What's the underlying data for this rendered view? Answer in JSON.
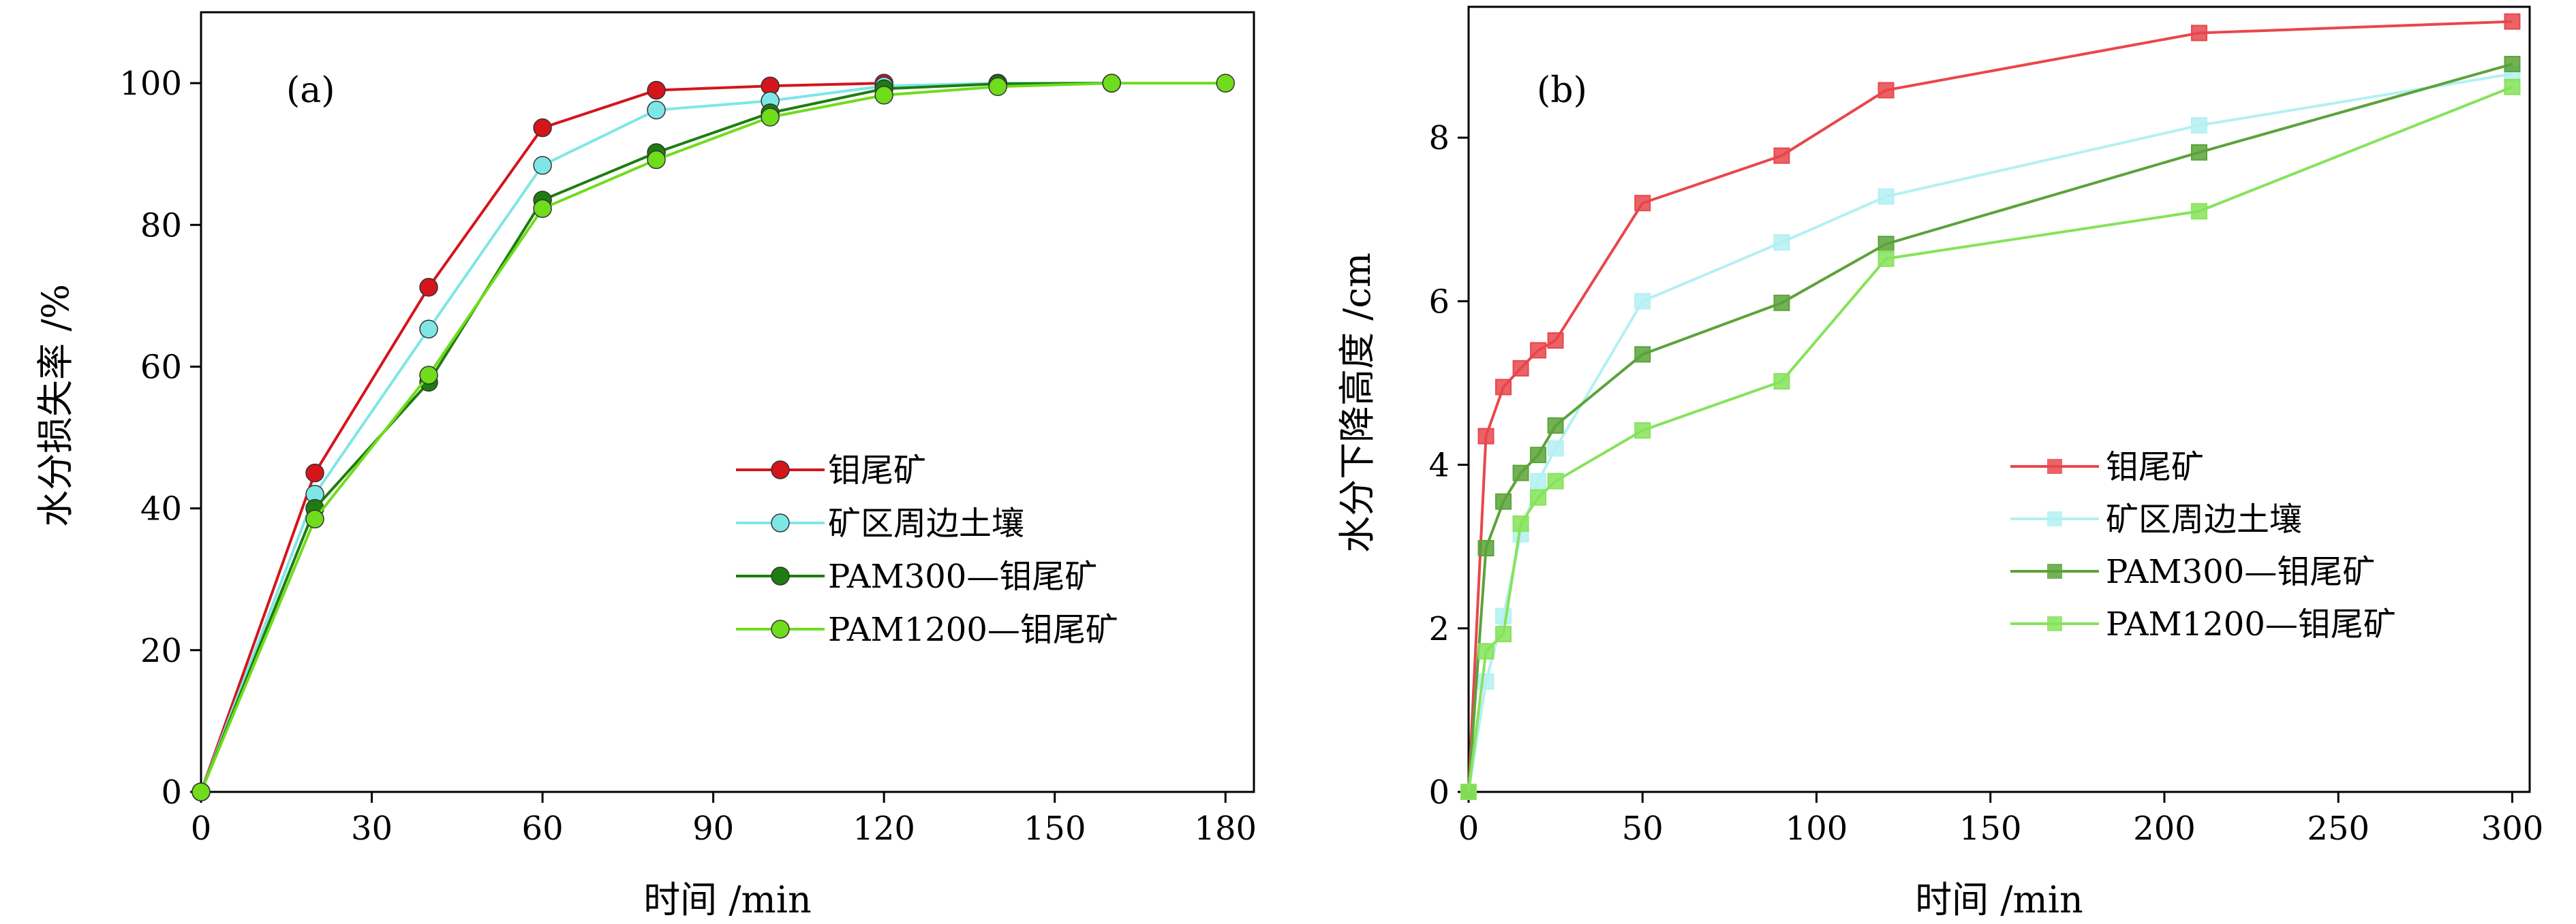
{
  "chart_data": [
    {
      "type": "line",
      "panel_label": "(a)",
      "xlabel": "时间 /min",
      "ylabel": "水分损失率 /%",
      "xlim": [
        0,
        185
      ],
      "ylim": [
        0,
        110
      ],
      "xticks": [
        0,
        30,
        60,
        90,
        120,
        150,
        180
      ],
      "yticks": [
        0,
        20,
        40,
        60,
        80,
        100
      ],
      "grid": false,
      "legend_position": "center-right",
      "marker": "circle",
      "series": [
        {
          "name": "钼尾矿",
          "color": "#d4151b",
          "points": [
            [
              0,
              0
            ],
            [
              20,
              45
            ],
            [
              40,
              71.2
            ],
            [
              60,
              93.7
            ],
            [
              80,
              99
            ],
            [
              100,
              99.6
            ],
            [
              120,
              100
            ]
          ]
        },
        {
          "name": "矿区周边土壤",
          "color": "#7fe6e6",
          "points": [
            [
              0,
              0
            ],
            [
              20,
              42
            ],
            [
              40,
              65.3
            ],
            [
              60,
              88.4
            ],
            [
              80,
              96.2
            ],
            [
              100,
              97.5
            ],
            [
              120,
              99.6
            ],
            [
              140,
              100
            ],
            [
              160,
              100
            ]
          ]
        },
        {
          "name": "PAM300—钼尾矿",
          "color": "#1e7d10",
          "points": [
            [
              0,
              0
            ],
            [
              20,
              40
            ],
            [
              40,
              57.8
            ],
            [
              60,
              83.5
            ],
            [
              80,
              90.2
            ],
            [
              100,
              95.8
            ],
            [
              120,
              99.2
            ],
            [
              140,
              99.9
            ],
            [
              160,
              100
            ]
          ]
        },
        {
          "name": "PAM1200—钼尾矿",
          "color": "#6fdc1c",
          "points": [
            [
              0,
              0
            ],
            [
              20,
              38.5
            ],
            [
              40,
              58.8
            ],
            [
              60,
              82.3
            ],
            [
              80,
              89.2
            ],
            [
              100,
              95.2
            ],
            [
              120,
              98.3
            ],
            [
              140,
              99.5
            ],
            [
              160,
              100
            ],
            [
              180,
              100
            ]
          ]
        }
      ]
    },
    {
      "type": "line",
      "panel_label": "(b)",
      "xlabel": "时间 /min",
      "ylabel": "水分下降高度 /cm",
      "xlim": [
        0,
        305
      ],
      "ylim": [
        0,
        9.6
      ],
      "xticks": [
        0,
        50,
        100,
        150,
        200,
        250,
        300
      ],
      "yticks": [
        0,
        2,
        4,
        6,
        8
      ],
      "grid": false,
      "legend_position": "center-right",
      "marker": "square",
      "series": [
        {
          "name": "钼尾矿",
          "color": "#e8474c",
          "points": [
            [
              0,
              0
            ],
            [
              5,
              4.35
            ],
            [
              10,
              4.95
            ],
            [
              15,
              5.18
            ],
            [
              20,
              5.4
            ],
            [
              25,
              5.52
            ],
            [
              50,
              7.2
            ],
            [
              90,
              7.78
            ],
            [
              120,
              8.58
            ],
            [
              210,
              9.28
            ],
            [
              300,
              9.42
            ]
          ]
        },
        {
          "name": "矿区周边土壤",
          "color": "#b4f0f2",
          "points": [
            [
              0,
              0
            ],
            [
              5,
              1.35
            ],
            [
              10,
              2.15
            ],
            [
              15,
              3.15
            ],
            [
              20,
              3.8
            ],
            [
              25,
              4.2
            ],
            [
              50,
              6.0
            ],
            [
              90,
              6.72
            ],
            [
              120,
              7.28
            ],
            [
              210,
              8.15
            ],
            [
              300,
              8.78
            ]
          ]
        },
        {
          "name": "PAM300—钼尾矿",
          "color": "#5ba33a",
          "points": [
            [
              0,
              0
            ],
            [
              5,
              2.98
            ],
            [
              10,
              3.55
            ],
            [
              15,
              3.9
            ],
            [
              20,
              4.12
            ],
            [
              25,
              4.48
            ],
            [
              50,
              5.35
            ],
            [
              90,
              5.98
            ],
            [
              120,
              6.7
            ],
            [
              210,
              7.82
            ],
            [
              300,
              8.9
            ]
          ]
        },
        {
          "name": "PAM1200—钼尾矿",
          "color": "#86e35a",
          "points": [
            [
              0,
              0
            ],
            [
              5,
              1.72
            ],
            [
              10,
              1.93
            ],
            [
              15,
              3.28
            ],
            [
              20,
              3.6
            ],
            [
              25,
              3.8
            ],
            [
              50,
              4.42
            ],
            [
              90,
              5.02
            ],
            [
              120,
              6.52
            ],
            [
              210,
              7.1
            ],
            [
              300,
              8.62
            ]
          ]
        }
      ]
    }
  ]
}
